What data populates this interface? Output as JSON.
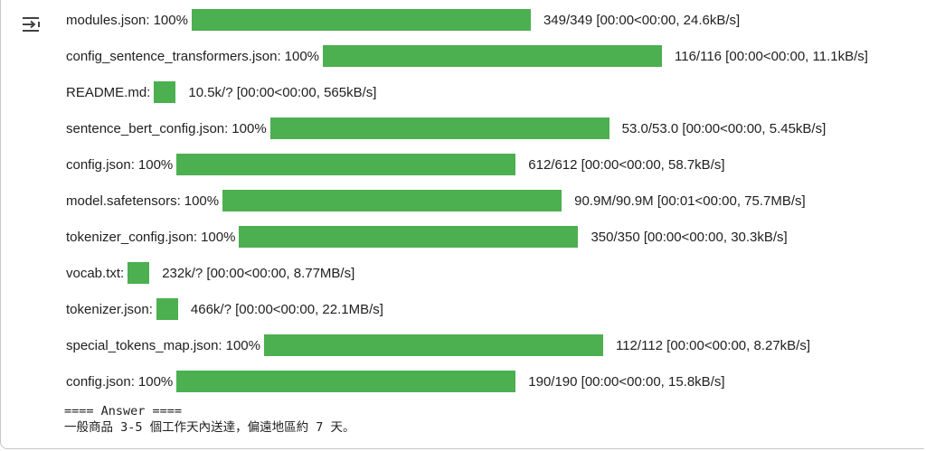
{
  "colors": {
    "bar_fill": "#4caf50",
    "bar_track": "#e0e0e0",
    "text": "#212121",
    "icon": "#424242"
  },
  "output_icon": "output-toggle-icon",
  "progress_rows": [
    {
      "label": "modules.json:",
      "percent": "100%",
      "fill": 1.0,
      "stats": "349/349  [00:00<00:00,  24.6kB/s]",
      "bar": "full"
    },
    {
      "label": "config_sentence_transformers.json:",
      "percent": "100%",
      "fill": 1.0,
      "stats": "116/116  [00:00<00:00,  11.1kB/s]",
      "bar": "full"
    },
    {
      "label": "README.md:",
      "percent": "",
      "fill": 1.0,
      "stats": "10.5k/?  [00:00<00:00,  565kB/s]",
      "bar": "small"
    },
    {
      "label": "sentence_bert_config.json:",
      "percent": "100%",
      "fill": 1.0,
      "stats": "53.0/53.0  [00:00<00:00,  5.45kB/s]",
      "bar": "full"
    },
    {
      "label": "config.json:",
      "percent": "100%",
      "fill": 1.0,
      "stats": "612/612  [00:00<00:00,  58.7kB/s]",
      "bar": "full"
    },
    {
      "label": "model.safetensors:",
      "percent": "100%",
      "fill": 1.0,
      "stats": "90.9M/90.9M  [00:01<00:00,  75.7MB/s]",
      "bar": "full"
    },
    {
      "label": "tokenizer_config.json:",
      "percent": "100%",
      "fill": 1.0,
      "stats": "350/350  [00:00<00:00,  30.3kB/s]",
      "bar": "full"
    },
    {
      "label": "vocab.txt:",
      "percent": "",
      "fill": 1.0,
      "stats": "232k/?  [00:00<00:00,  8.77MB/s]",
      "bar": "small"
    },
    {
      "label": "tokenizer.json:",
      "percent": "",
      "fill": 1.0,
      "stats": "466k/?  [00:00<00:00,  22.1MB/s]",
      "bar": "small"
    },
    {
      "label": "special_tokens_map.json:",
      "percent": "100%",
      "fill": 1.0,
      "stats": "112/112  [00:00<00:00,  8.27kB/s]",
      "bar": "full"
    },
    {
      "label": "config.json:",
      "percent": "100%",
      "fill": 1.0,
      "stats": "190/190  [00:00<00:00,  15.8kB/s]",
      "bar": "full"
    }
  ],
  "answer": {
    "header": "==== Answer ====",
    "text": "一般商品 3-5 個工作天內送達，偏遠地區約 7 天。"
  }
}
